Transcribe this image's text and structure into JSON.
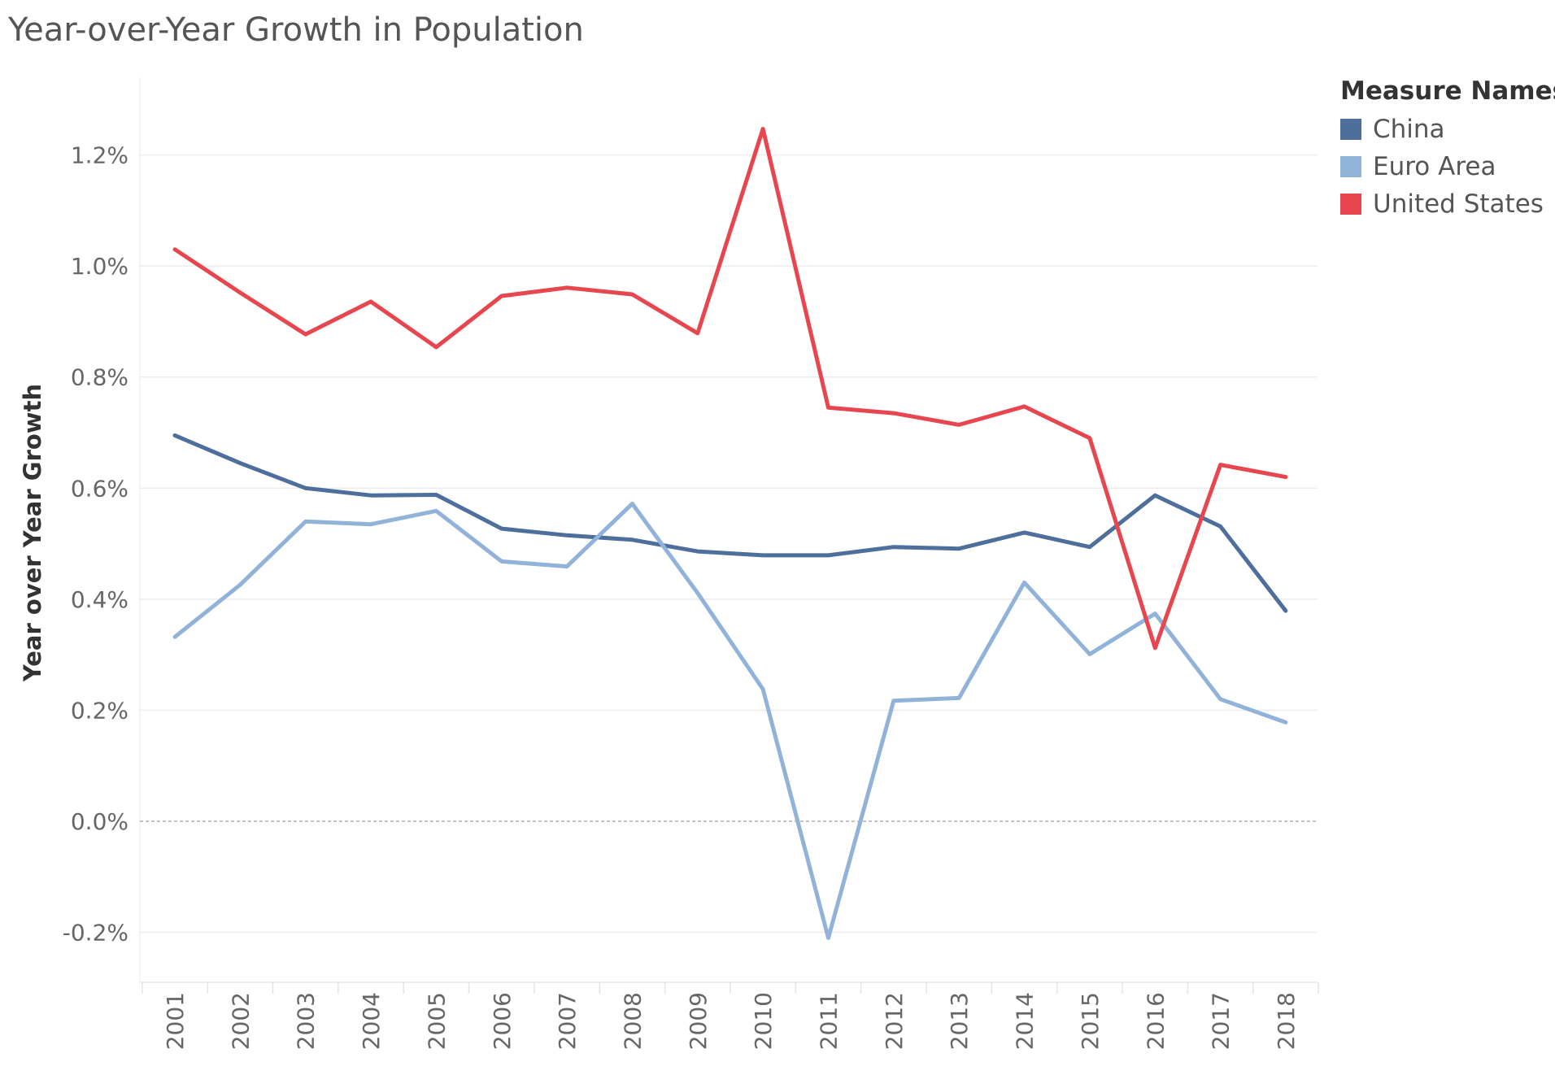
{
  "title": "Year-over-Year Growth in Population",
  "chart_data": {
    "type": "line",
    "title": "Year-over-Year Growth in Population",
    "xlabel": "",
    "ylabel": "Year over Year Growth",
    "categories": [
      "2001",
      "2002",
      "2003",
      "2004",
      "2005",
      "2006",
      "2007",
      "2008",
      "2009",
      "2010",
      "2011",
      "2012",
      "2013",
      "2014",
      "2015",
      "2016",
      "2017",
      "2018"
    ],
    "ylim": [
      -0.29,
      1.34
    ],
    "yticks": [
      -0.2,
      0.0,
      0.2,
      0.4,
      0.6,
      0.8,
      1.0,
      1.2
    ],
    "ytick_labels": [
      "-0.2%",
      "0.0%",
      "0.2%",
      "0.4%",
      "0.6%",
      "0.8%",
      "1.0%",
      "1.2%"
    ],
    "grid": true,
    "legend": {
      "title": "Measure Names",
      "position": "top-right"
    },
    "series": [
      {
        "name": "China",
        "color": "#4e6f9c",
        "values": [
          0.695,
          0.645,
          0.6,
          0.587,
          0.588,
          0.527,
          0.515,
          0.507,
          0.486,
          0.479,
          0.479,
          0.494,
          0.491,
          0.52,
          0.494,
          0.587,
          0.531,
          0.379
        ]
      },
      {
        "name": "Euro Area",
        "color": "#92b3d9",
        "values": [
          0.332,
          0.426,
          0.54,
          0.535,
          0.559,
          0.468,
          0.459,
          0.572,
          0.411,
          0.238,
          -0.21,
          0.217,
          0.222,
          0.43,
          0.301,
          0.374,
          0.22,
          0.178
        ]
      },
      {
        "name": "United States",
        "color": "#e8464e",
        "values": [
          1.03,
          0.952,
          0.877,
          0.936,
          0.854,
          0.946,
          0.961,
          0.949,
          0.879,
          1.247,
          0.745,
          0.735,
          0.714,
          0.747,
          0.69,
          0.312,
          0.642,
          0.62
        ]
      }
    ]
  }
}
